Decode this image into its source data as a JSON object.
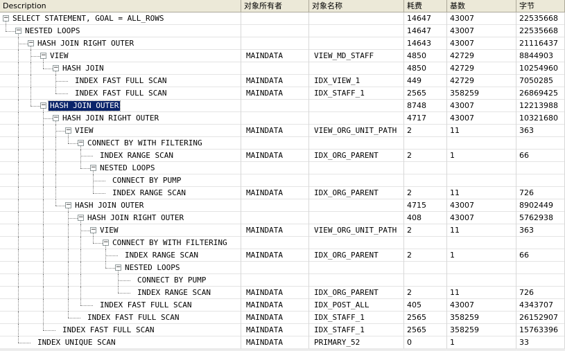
{
  "columns": [
    {
      "key": "desc",
      "label": "Description"
    },
    {
      "key": "owner",
      "label": "对象所有者"
    },
    {
      "key": "name",
      "label": "对象名称"
    },
    {
      "key": "cost",
      "label": "耗费"
    },
    {
      "key": "card",
      "label": "基数"
    },
    {
      "key": "bytes",
      "label": "字节"
    }
  ],
  "selected_row": 8,
  "rows": [
    {
      "level": 0,
      "desc": "SELECT STATEMENT, GOAL = ALL_ROWS",
      "owner": "",
      "name": "",
      "cost": "14647",
      "card": "43007",
      "bytes": "22535668",
      "expandable": true
    },
    {
      "level": 1,
      "desc": "NESTED LOOPS",
      "owner": "",
      "name": "",
      "cost": "14647",
      "card": "43007",
      "bytes": "22535668",
      "expandable": true
    },
    {
      "level": 2,
      "desc": "HASH JOIN RIGHT OUTER",
      "owner": "",
      "name": "",
      "cost": "14643",
      "card": "43007",
      "bytes": "21116437",
      "expandable": true
    },
    {
      "level": 3,
      "desc": "VIEW",
      "owner": "MAINDATA",
      "name": "VIEW_MD_STAFF",
      "cost": "4850",
      "card": "42729",
      "bytes": "8844903",
      "expandable": true
    },
    {
      "level": 4,
      "desc": "HASH JOIN",
      "owner": "",
      "name": "",
      "cost": "4850",
      "card": "42729",
      "bytes": "10254960",
      "expandable": true
    },
    {
      "level": 5,
      "desc": "INDEX FAST FULL SCAN",
      "owner": "MAINDATA",
      "name": "IDX_VIEW_1",
      "cost": "449",
      "card": "42729",
      "bytes": "7050285",
      "expandable": false
    },
    {
      "level": 5,
      "desc": "INDEX FAST FULL SCAN",
      "owner": "MAINDATA",
      "name": "IDX_STAFF_1",
      "cost": "2565",
      "card": "358259",
      "bytes": "26869425",
      "expandable": false
    },
    {
      "level": 3,
      "desc": "HASH JOIN OUTER",
      "owner": "",
      "name": "",
      "cost": "8748",
      "card": "43007",
      "bytes": "12213988",
      "expandable": true
    },
    {
      "level": 4,
      "desc": "HASH JOIN RIGHT OUTER",
      "owner": "",
      "name": "",
      "cost": "4717",
      "card": "43007",
      "bytes": "10321680",
      "expandable": true
    },
    {
      "level": 5,
      "desc": "VIEW",
      "owner": "MAINDATA",
      "name": "VIEW_ORG_UNIT_PATH",
      "cost": "2",
      "card": "11",
      "bytes": "363",
      "expandable": true
    },
    {
      "level": 6,
      "desc": "CONNECT BY WITH FILTERING",
      "owner": "",
      "name": "",
      "cost": "",
      "card": "",
      "bytes": "",
      "expandable": true
    },
    {
      "level": 7,
      "desc": "INDEX RANGE SCAN",
      "owner": "MAINDATA",
      "name": "IDX_ORG_PARENT",
      "cost": "2",
      "card": "1",
      "bytes": "66",
      "expandable": false
    },
    {
      "level": 7,
      "desc": "NESTED LOOPS",
      "owner": "",
      "name": "",
      "cost": "",
      "card": "",
      "bytes": "",
      "expandable": true
    },
    {
      "level": 8,
      "desc": "CONNECT BY PUMP",
      "owner": "",
      "name": "",
      "cost": "",
      "card": "",
      "bytes": "",
      "expandable": false
    },
    {
      "level": 8,
      "desc": "INDEX RANGE SCAN",
      "owner": "MAINDATA",
      "name": "IDX_ORG_PARENT",
      "cost": "2",
      "card": "11",
      "bytes": "726",
      "expandable": false
    },
    {
      "level": 5,
      "desc": "HASH JOIN OUTER",
      "owner": "",
      "name": "",
      "cost": "4715",
      "card": "43007",
      "bytes": "8902449",
      "expandable": true
    },
    {
      "level": 6,
      "desc": "HASH JOIN RIGHT OUTER",
      "owner": "",
      "name": "",
      "cost": "408",
      "card": "43007",
      "bytes": "5762938",
      "expandable": true
    },
    {
      "level": 7,
      "desc": "VIEW",
      "owner": "MAINDATA",
      "name": "VIEW_ORG_UNIT_PATH",
      "cost": "2",
      "card": "11",
      "bytes": "363",
      "expandable": true
    },
    {
      "level": 8,
      "desc": "CONNECT BY WITH FILTERING",
      "owner": "",
      "name": "",
      "cost": "",
      "card": "",
      "bytes": "",
      "expandable": true
    },
    {
      "level": 9,
      "desc": "INDEX RANGE SCAN",
      "owner": "MAINDATA",
      "name": "IDX_ORG_PARENT",
      "cost": "2",
      "card": "1",
      "bytes": "66",
      "expandable": false
    },
    {
      "level": 9,
      "desc": "NESTED LOOPS",
      "owner": "",
      "name": "",
      "cost": "",
      "card": "",
      "bytes": "",
      "expandable": true
    },
    {
      "level": 10,
      "desc": "CONNECT BY PUMP",
      "owner": "",
      "name": "",
      "cost": "",
      "card": "",
      "bytes": "",
      "expandable": false
    },
    {
      "level": 10,
      "desc": "INDEX RANGE SCAN",
      "owner": "MAINDATA",
      "name": "IDX_ORG_PARENT",
      "cost": "2",
      "card": "11",
      "bytes": "726",
      "expandable": false
    },
    {
      "level": 7,
      "desc": "INDEX FAST FULL SCAN",
      "owner": "MAINDATA",
      "name": "IDX_POST_ALL",
      "cost": "405",
      "card": "43007",
      "bytes": "4343707",
      "expandable": false
    },
    {
      "level": 6,
      "desc": "INDEX FAST FULL SCAN",
      "owner": "MAINDATA",
      "name": "IDX_STAFF_1",
      "cost": "2565",
      "card": "358259",
      "bytes": "26152907",
      "expandable": false
    },
    {
      "level": 4,
      "desc": "INDEX FAST FULL SCAN",
      "owner": "MAINDATA",
      "name": "IDX_STAFF_1",
      "cost": "2565",
      "card": "358259",
      "bytes": "15763396",
      "expandable": false
    },
    {
      "level": 2,
      "desc": "INDEX UNIQUE SCAN",
      "owner": "MAINDATA",
      "name": "PRIMARY_52",
      "cost": "0",
      "card": "1",
      "bytes": "33",
      "expandable": false
    }
  ]
}
